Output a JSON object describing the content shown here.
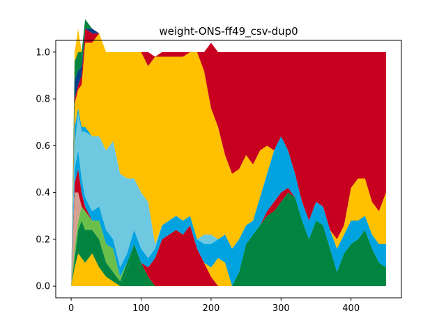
{
  "chart_data": {
    "type": "area",
    "title": "weight-ONS-ff49_csv-dup0",
    "xlabel": "",
    "ylabel": "",
    "xlim": [
      -22,
      472
    ],
    "ylim": [
      -0.05,
      1.05
    ],
    "x_ticks": [
      0,
      100,
      200,
      300,
      400
    ],
    "y_ticks": [
      0.0,
      0.2,
      0.4,
      0.6,
      0.8,
      1.0
    ],
    "x_tick_labels": [
      "0",
      "100",
      "200",
      "300",
      "400"
    ],
    "y_tick_labels": [
      "0.0",
      "0.2",
      "0.4",
      "0.6",
      "0.8",
      "1.0"
    ],
    "grid": false,
    "stacked": true,
    "x": [
      0,
      5,
      10,
      15,
      20,
      30,
      40,
      50,
      60,
      70,
      80,
      90,
      100,
      110,
      120,
      130,
      140,
      150,
      160,
      170,
      180,
      190,
      200,
      210,
      220,
      230,
      240,
      250,
      260,
      270,
      280,
      290,
      300,
      310,
      320,
      330,
      340,
      350,
      360,
      370,
      380,
      390,
      400,
      410,
      420,
      430,
      440,
      450
    ],
    "series": [
      {
        "color": "#00843f",
        "values": [
          0.0,
          0.0,
          0.0,
          0.0,
          0.0,
          0.0,
          0.0,
          0.0,
          0.0,
          0.0,
          0.06,
          0.18,
          0.1,
          0.04,
          0.0,
          0.0,
          0.0,
          0.0,
          0.0,
          0.0,
          0.0,
          0.0,
          0.0,
          0.0,
          0.0,
          0.0,
          0.06,
          0.18,
          0.22,
          0.26,
          0.3,
          0.32,
          0.36,
          0.4,
          0.38,
          0.28,
          0.2,
          0.28,
          0.26,
          0.16,
          0.06,
          0.14,
          0.18,
          0.2,
          0.24,
          0.16,
          0.1,
          0.08
        ]
      },
      {
        "color": "#c8001f",
        "values": [
          0.0,
          0.0,
          0.0,
          0.0,
          0.0,
          0.0,
          0.0,
          0.0,
          0.0,
          0.0,
          0.0,
          0.0,
          0.0,
          0.04,
          0.12,
          0.2,
          0.22,
          0.24,
          0.22,
          0.26,
          0.16,
          0.1,
          0.04,
          0.0,
          0.0,
          0.0,
          0.0,
          0.0,
          0.0,
          0.0,
          0.02,
          0.04,
          0.04,
          0.02,
          0.0,
          0.0,
          0.0,
          0.0,
          0.0,
          0.0,
          0.0,
          0.0,
          0.0,
          0.0,
          0.0,
          0.0,
          0.0,
          0.0
        ]
      },
      {
        "color": "#ffc000",
        "values": [
          0.0,
          0.08,
          0.14,
          0.12,
          0.1,
          0.14,
          0.08,
          0.04,
          0.02,
          0.0,
          0.0,
          0.0,
          0.0,
          0.0,
          0.0,
          0.0,
          0.0,
          0.0,
          0.0,
          0.0,
          0.0,
          0.0,
          0.04,
          0.12,
          0.1,
          0.0,
          0.0,
          0.0,
          0.0,
          0.0,
          0.0,
          0.0,
          0.0,
          0.0,
          0.0,
          0.0,
          0.0,
          0.0,
          0.0,
          0.0,
          0.0,
          0.0,
          0.0,
          0.0,
          0.0,
          0.0,
          0.0,
          0.0
        ]
      },
      {
        "color": "#00843f",
        "values": [
          0.0,
          0.04,
          0.1,
          0.16,
          0.14,
          0.1,
          0.12,
          0.06,
          0.04,
          0.02,
          0.04,
          0.0,
          0.0,
          0.0,
          0.0,
          0.0,
          0.0,
          0.0,
          0.0,
          0.0,
          0.0,
          0.0,
          0.0,
          0.0,
          0.0,
          0.0,
          0.0,
          0.0,
          0.0,
          0.0,
          0.0,
          0.0,
          0.0,
          0.0,
          0.0,
          0.0,
          0.0,
          0.0,
          0.0,
          0.0,
          0.0,
          0.0,
          0.0,
          0.0,
          0.0,
          0.0,
          0.0,
          0.0
        ]
      },
      {
        "color": "#6abf4b",
        "values": [
          0.0,
          0.04,
          0.04,
          0.06,
          0.08,
          0.04,
          0.08,
          0.08,
          0.1,
          0.02,
          0.0,
          0.0,
          0.0,
          0.0,
          0.0,
          0.0,
          0.0,
          0.0,
          0.0,
          0.0,
          0.0,
          0.0,
          0.0,
          0.0,
          0.0,
          0.0,
          0.0,
          0.0,
          0.0,
          0.0,
          0.0,
          0.0,
          0.0,
          0.0,
          0.0,
          0.0,
          0.0,
          0.0,
          0.0,
          0.0,
          0.0,
          0.0,
          0.0,
          0.0,
          0.0,
          0.0,
          0.0,
          0.0
        ]
      },
      {
        "color": "#d4a190",
        "values": [
          0.0,
          0.24,
          0.12,
          0.0,
          0.0,
          0.0,
          0.0,
          0.0,
          0.0,
          0.0,
          0.0,
          0.0,
          0.0,
          0.0,
          0.0,
          0.0,
          0.0,
          0.0,
          0.0,
          0.0,
          0.0,
          0.0,
          0.0,
          0.0,
          0.0,
          0.0,
          0.0,
          0.0,
          0.0,
          0.0,
          0.0,
          0.0,
          0.0,
          0.0,
          0.0,
          0.0,
          0.0,
          0.0,
          0.0,
          0.0,
          0.0,
          0.0,
          0.0,
          0.0,
          0.0,
          0.0,
          0.0,
          0.0
        ]
      },
      {
        "color": "#c8001f",
        "values": [
          0.0,
          0.04,
          0.1,
          0.06,
          0.02,
          0.0,
          0.0,
          0.0,
          0.0,
          0.0,
          0.0,
          0.0,
          0.0,
          0.0,
          0.0,
          0.0,
          0.0,
          0.0,
          0.0,
          0.0,
          0.0,
          0.0,
          0.0,
          0.0,
          0.0,
          0.0,
          0.0,
          0.0,
          0.0,
          0.0,
          0.0,
          0.0,
          0.0,
          0.0,
          0.0,
          0.0,
          0.0,
          0.0,
          0.0,
          0.0,
          0.0,
          0.0,
          0.0,
          0.0,
          0.0,
          0.0,
          0.0,
          0.0
        ]
      },
      {
        "color": "#00a2e0",
        "values": [
          0.0,
          0.06,
          0.08,
          0.06,
          0.04,
          0.04,
          0.06,
          0.06,
          0.04,
          0.04,
          0.04,
          0.06,
          0.06,
          0.04,
          0.04,
          0.06,
          0.06,
          0.06,
          0.06,
          0.04,
          0.04,
          0.08,
          0.1,
          0.08,
          0.12,
          0.16,
          0.14,
          0.08,
          0.06,
          0.12,
          0.16,
          0.22,
          0.24,
          0.16,
          0.1,
          0.08,
          0.08,
          0.08,
          0.08,
          0.08,
          0.1,
          0.08,
          0.1,
          0.08,
          0.06,
          0.06,
          0.08,
          0.1
        ]
      },
      {
        "color": "#6dc8e0",
        "values": [
          0.0,
          0.1,
          0.16,
          0.2,
          0.28,
          0.32,
          0.3,
          0.34,
          0.42,
          0.4,
          0.32,
          0.22,
          0.24,
          0.24,
          0.02,
          0.0,
          0.0,
          0.0,
          0.0,
          0.0,
          0.0,
          0.04,
          0.04,
          0.0,
          0.0,
          0.0,
          0.0,
          0.0,
          0.0,
          0.0,
          0.0,
          0.0,
          0.0,
          0.0,
          0.0,
          0.0,
          0.0,
          0.0,
          0.0,
          0.0,
          0.0,
          0.0,
          0.0,
          0.0,
          0.0,
          0.0,
          0.0,
          0.0
        ]
      },
      {
        "color": "#00a2e0",
        "values": [
          0.0,
          0.08,
          0.02,
          0.02,
          0.02,
          0.0,
          0.0,
          0.0,
          0.0,
          0.0,
          0.0,
          0.0,
          0.0,
          0.0,
          0.0,
          0.0,
          0.0,
          0.0,
          0.0,
          0.0,
          0.0,
          0.0,
          0.0,
          0.0,
          0.0,
          0.0,
          0.0,
          0.0,
          0.0,
          0.0,
          0.0,
          0.0,
          0.0,
          0.0,
          0.0,
          0.0,
          0.0,
          0.0,
          0.0,
          0.0,
          0.0,
          0.0,
          0.0,
          0.0,
          0.0,
          0.0,
          0.0,
          0.0
        ]
      },
      {
        "color": "#ffc000",
        "values": [
          0.0,
          0.1,
          0.08,
          0.18,
          0.36,
          0.4,
          0.44,
          0.42,
          0.38,
          0.52,
          0.54,
          0.54,
          0.6,
          0.58,
          0.8,
          0.72,
          0.7,
          0.68,
          0.7,
          0.7,
          0.8,
          0.7,
          0.54,
          0.48,
          0.34,
          0.32,
          0.3,
          0.3,
          0.24,
          0.2,
          0.12,
          0.0,
          0.0,
          0.0,
          0.0,
          0.0,
          0.0,
          0.0,
          0.0,
          0.0,
          0.04,
          0.04,
          0.14,
          0.18,
          0.16,
          0.14,
          0.14,
          0.22
        ]
      },
      {
        "color": "#c8001f",
        "values": [
          0.0,
          0.02,
          0.02,
          0.04,
          0.06,
          0.04,
          0.0,
          0.0,
          0.0,
          0.0,
          0.0,
          0.0,
          0.0,
          0.06,
          0.0,
          0.02,
          0.02,
          0.02,
          0.02,
          0.0,
          0.0,
          0.08,
          0.28,
          0.32,
          0.44,
          0.52,
          0.5,
          0.44,
          0.48,
          0.42,
          0.4,
          0.42,
          0.36,
          0.42,
          0.52,
          0.64,
          0.72,
          0.64,
          0.66,
          0.76,
          0.8,
          0.74,
          0.58,
          0.54,
          0.54,
          0.64,
          0.68,
          0.6
        ]
      },
      {
        "color": "#003f87",
        "values": [
          0.0,
          0.08,
          0.06,
          0.04,
          0.0,
          0.02,
          0.0,
          0.0,
          0.0,
          0.0,
          0.0,
          0.0,
          0.0,
          0.0,
          0.0,
          0.0,
          0.0,
          0.0,
          0.0,
          0.0,
          0.0,
          0.0,
          0.0,
          0.0,
          0.0,
          0.0,
          0.0,
          0.0,
          0.0,
          0.0,
          0.0,
          0.0,
          0.0,
          0.0,
          0.0,
          0.0,
          0.0,
          0.0,
          0.0,
          0.0,
          0.0,
          0.0,
          0.0,
          0.0,
          0.0,
          0.0,
          0.0,
          0.0
        ]
      },
      {
        "color": "#00843f",
        "values": [
          0.0,
          0.08,
          0.08,
          0.06,
          0.04,
          0.0,
          0.0,
          0.0,
          0.0,
          0.0,
          0.0,
          0.0,
          0.0,
          0.0,
          0.0,
          0.0,
          0.0,
          0.0,
          0.0,
          0.0,
          0.0,
          0.0,
          0.0,
          0.0,
          0.0,
          0.0,
          0.0,
          0.0,
          0.0,
          0.0,
          0.0,
          0.0,
          0.0,
          0.0,
          0.0,
          0.0,
          0.0,
          0.0,
          0.0,
          0.0,
          0.0,
          0.0,
          0.0,
          0.0,
          0.0,
          0.0,
          0.0,
          0.0
        ]
      },
      {
        "color": "#ffc000",
        "values": [
          0.0,
          0.04,
          0.1,
          0.0,
          0.0,
          0.0,
          0.0,
          0.0,
          0.0,
          0.0,
          0.0,
          0.0,
          0.0,
          0.0,
          0.0,
          0.0,
          0.0,
          0.0,
          0.0,
          0.0,
          0.0,
          0.0,
          0.0,
          0.0,
          0.0,
          0.0,
          0.0,
          0.0,
          0.0,
          0.0,
          0.0,
          0.0,
          0.0,
          0.0,
          0.0,
          0.0,
          0.0,
          0.0,
          0.0,
          0.0,
          0.0,
          0.0,
          0.0,
          0.0,
          0.0,
          0.0,
          0.0,
          0.0
        ]
      }
    ]
  }
}
